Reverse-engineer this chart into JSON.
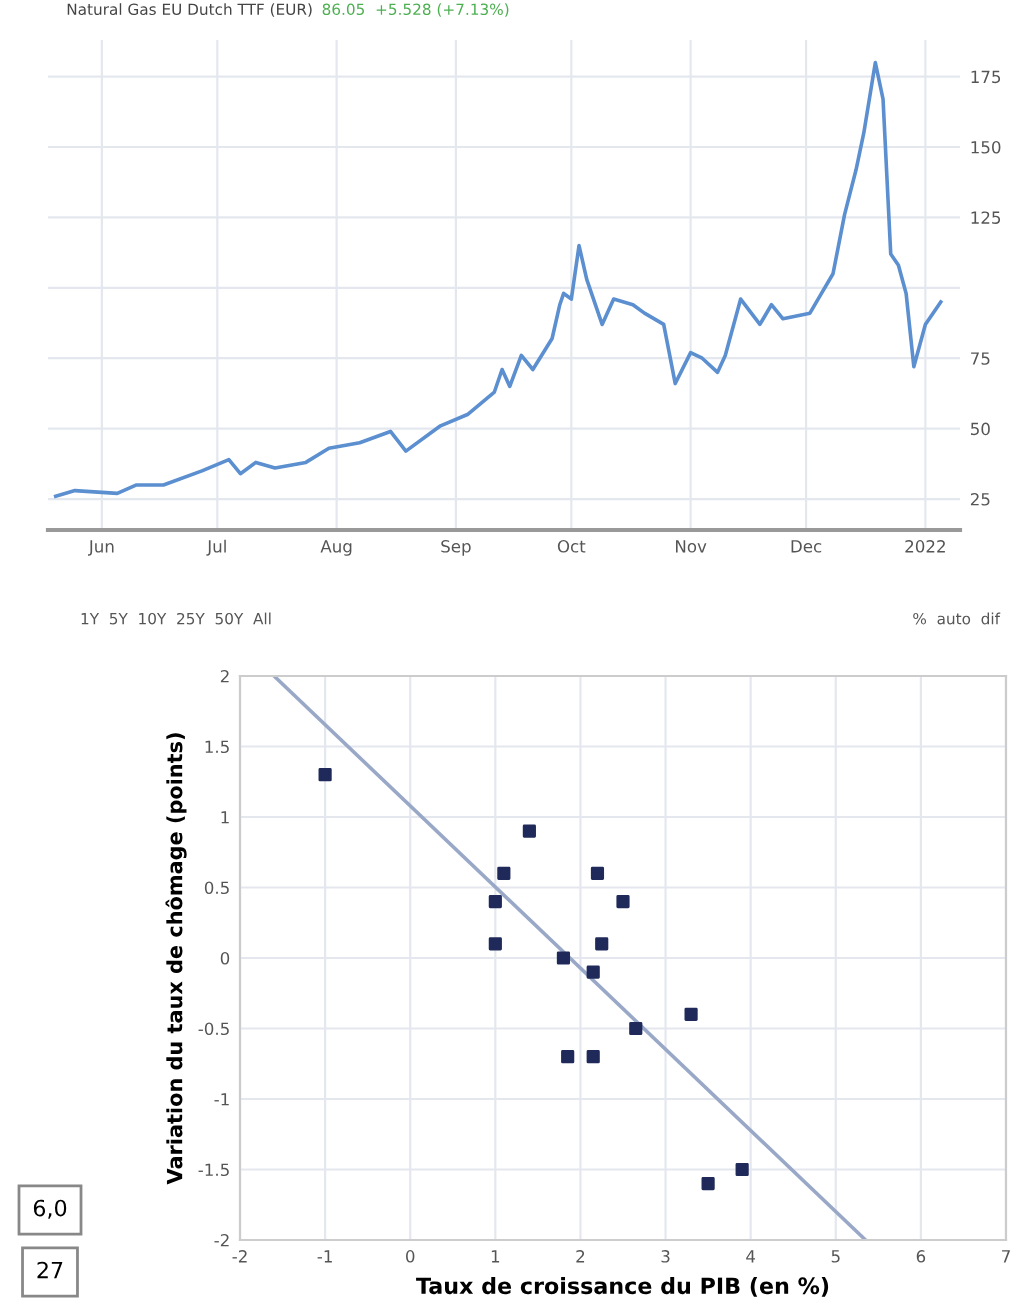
{
  "chart_data": [
    {
      "type": "line",
      "title": "Natural Gas EU Dutch TTF (EUR)",
      "subtitle": "86.05  +5.528 (+7.13%)",
      "color": "#5b8fd0",
      "grid": true,
      "marker": "none",
      "line_style": "solid",
      "x": [
        "2021-05-20",
        "2021-05-25",
        "2021-06-05",
        "2021-06-10",
        "2021-06-17",
        "2021-06-27",
        "2021-07-04",
        "2021-07-07",
        "2021-07-11",
        "2021-07-16",
        "2021-07-24",
        "2021-07-30",
        "2021-08-07",
        "2021-08-15",
        "2021-08-19",
        "2021-08-28",
        "2021-09-04",
        "2021-09-11",
        "2021-09-13",
        "2021-09-15",
        "2021-09-18",
        "2021-09-21",
        "2021-09-26",
        "2021-09-28",
        "2021-09-29",
        "2021-10-01",
        "2021-10-03",
        "2021-10-05",
        "2021-10-09",
        "2021-10-12",
        "2021-10-17",
        "2021-10-20",
        "2021-10-25",
        "2021-10-28",
        "2021-11-01",
        "2021-11-04",
        "2021-11-08",
        "2021-11-10",
        "2021-11-14",
        "2021-11-19",
        "2021-11-22",
        "2021-11-25",
        "2021-12-02",
        "2021-12-05",
        "2021-12-08",
        "2021-12-11",
        "2021-12-14",
        "2021-12-16",
        "2021-12-19",
        "2021-12-21",
        "2021-12-23",
        "2021-12-25",
        "2021-12-27",
        "2021-12-29",
        "2022-01-01",
        "2022-01-05"
      ],
      "values": [
        26,
        28,
        27,
        30,
        30,
        35,
        39,
        34,
        38,
        36,
        38,
        43,
        45,
        49,
        42,
        51,
        55,
        63,
        71,
        65,
        76,
        71,
        82,
        94,
        98,
        96,
        115,
        103,
        87,
        96,
        94,
        91,
        87,
        66,
        77,
        75,
        70,
        76,
        96,
        87,
        94,
        89,
        91,
        98,
        105,
        126,
        142,
        155,
        180,
        167,
        112,
        108,
        98,
        72,
        87,
        95
      ],
      "xlim": [
        "2021-05-18",
        "2022-01-10"
      ],
      "ylim": [
        14,
        188
      ],
      "xticks": [
        {
          "value": "2021-06-01",
          "label": "Jun"
        },
        {
          "value": "2021-07-01",
          "label": "Jul"
        },
        {
          "value": "2021-08-01",
          "label": "Aug"
        },
        {
          "value": "2021-09-01",
          "label": "Sep"
        },
        {
          "value": "2021-10-01",
          "label": "Oct"
        },
        {
          "value": "2021-11-01",
          "label": "Nov"
        },
        {
          "value": "2021-12-01",
          "label": "Dec"
        },
        {
          "value": "2022-01-01",
          "label": "2022"
        }
      ],
      "yticks": [
        25,
        50,
        75,
        {
          "value": 100,
          "label": null
        },
        125,
        150,
        175
      ],
      "annotations": [
        "1Y  5Y  10Y  25Y  50Y  All",
        "%  auto  dif"
      ]
    },
    {
      "type": "scatter",
      "xlabel": "Taux de croissance du PIB (en %)",
      "ylabel": "Variation du taux de chômage (points)",
      "grid": true,
      "series": [
        {
          "type": "scatter",
          "marker": "square",
          "color": "#1f2a5a",
          "x": [
            -1,
            1.4,
            1.1,
            2.2,
            1.0,
            2.5,
            1.0,
            2.25,
            1.8,
            2.15,
            2.65,
            3.3,
            1.85,
            2.15,
            3.5,
            3.9
          ],
          "values": [
            1.3,
            0.9,
            0.6,
            0.6,
            0.4,
            0.4,
            0.1,
            0.1,
            0.0,
            -0.1,
            -0.5,
            -0.4,
            -0.7,
            -0.7,
            -1.6,
            -1.5
          ]
        },
        {
          "type": "line",
          "color": "#9aa8c8",
          "x": [
            -1.6,
            5.35
          ],
          "values": [
            2,
            -2
          ]
        }
      ],
      "xlim": [
        -2,
        7
      ],
      "ylim": [
        -2,
        2
      ],
      "xticks": [
        -2,
        -1,
        0,
        1,
        2,
        3,
        4,
        5,
        6,
        7
      ],
      "yticks": [
        -2,
        -1.5,
        -1,
        -0.5,
        0,
        0.5,
        1,
        1.5,
        2
      ],
      "annotations": [
        "6,0",
        "27"
      ]
    }
  ]
}
